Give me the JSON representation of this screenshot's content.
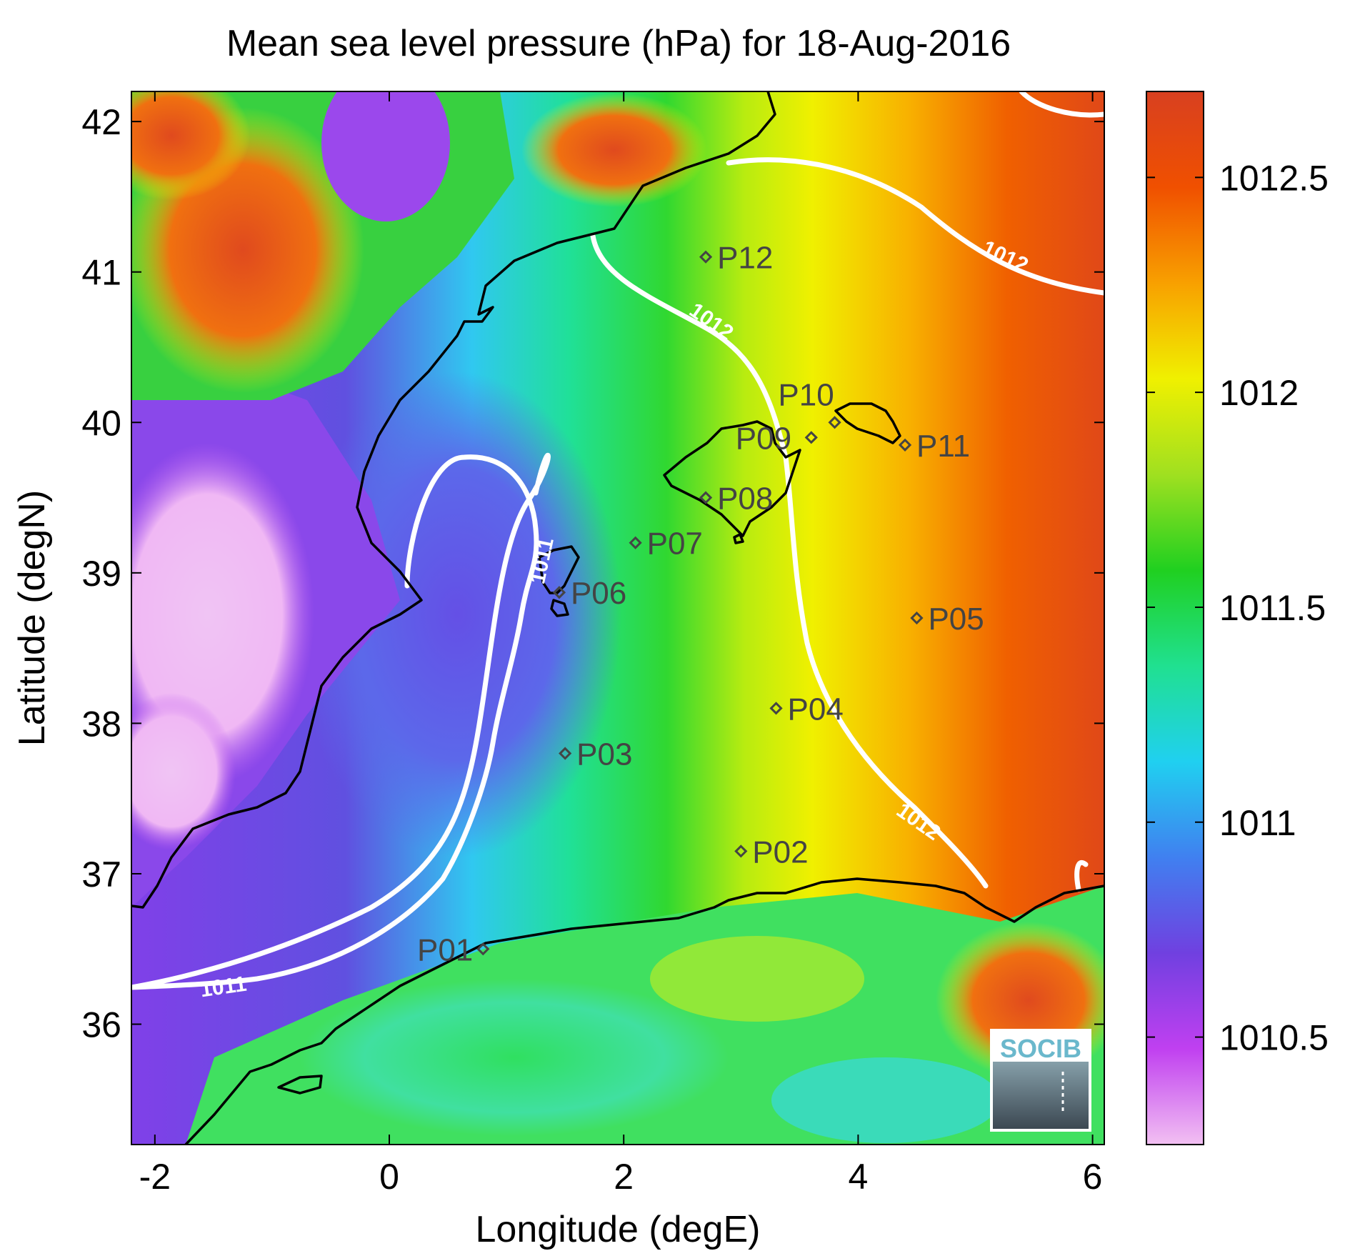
{
  "title": "Mean sea level pressure (hPa) for 18-Aug-2016",
  "chart_data": {
    "type": "heatmap",
    "title": "Mean sea level pressure (hPa) for 18-Aug-2016",
    "xlabel": "Longitude (degE)",
    "ylabel": "Latitude (degN)",
    "xlim": [
      -2.2,
      6.1
    ],
    "ylim": [
      35.2,
      42.2
    ],
    "xticks": [
      -2,
      0,
      2,
      4,
      6
    ],
    "yticks": [
      36,
      37,
      38,
      39,
      40,
      41,
      42
    ],
    "colorbar": {
      "range": [
        1010.25,
        1012.7
      ],
      "ticks": [
        1010.5,
        1011,
        1011.5,
        1012,
        1012.5
      ],
      "colors": [
        "#f2c0f2",
        "#c040f0",
        "#7040e0",
        "#4080f0",
        "#20d0f0",
        "#20e090",
        "#20d020",
        "#a0e020",
        "#f0f000",
        "#f8a000",
        "#f05000",
        "#d84020"
      ]
    },
    "contours": [
      {
        "level": 1011,
        "label": "1011"
      },
      {
        "level": 1012,
        "label": "1012"
      }
    ],
    "stations": [
      {
        "name": "P01",
        "lon": 0.8,
        "lat": 36.5
      },
      {
        "name": "P02",
        "lon": 3.0,
        "lat": 37.15
      },
      {
        "name": "P03",
        "lon": 1.5,
        "lat": 37.8
      },
      {
        "name": "P04",
        "lon": 3.3,
        "lat": 38.1
      },
      {
        "name": "P05",
        "lon": 4.5,
        "lat": 38.7
      },
      {
        "name": "P06",
        "lon": 1.45,
        "lat": 38.87
      },
      {
        "name": "P07",
        "lon": 2.1,
        "lat": 39.2
      },
      {
        "name": "P08",
        "lon": 2.7,
        "lat": 39.5
      },
      {
        "name": "P09",
        "lon": 3.6,
        "lat": 39.9
      },
      {
        "name": "P10",
        "lon": 3.8,
        "lat": 40.0
      },
      {
        "name": "P11",
        "lon": 4.4,
        "lat": 39.85
      },
      {
        "name": "P12",
        "lon": 2.7,
        "lat": 41.1
      }
    ]
  },
  "logo": {
    "text": "SOCIB"
  }
}
